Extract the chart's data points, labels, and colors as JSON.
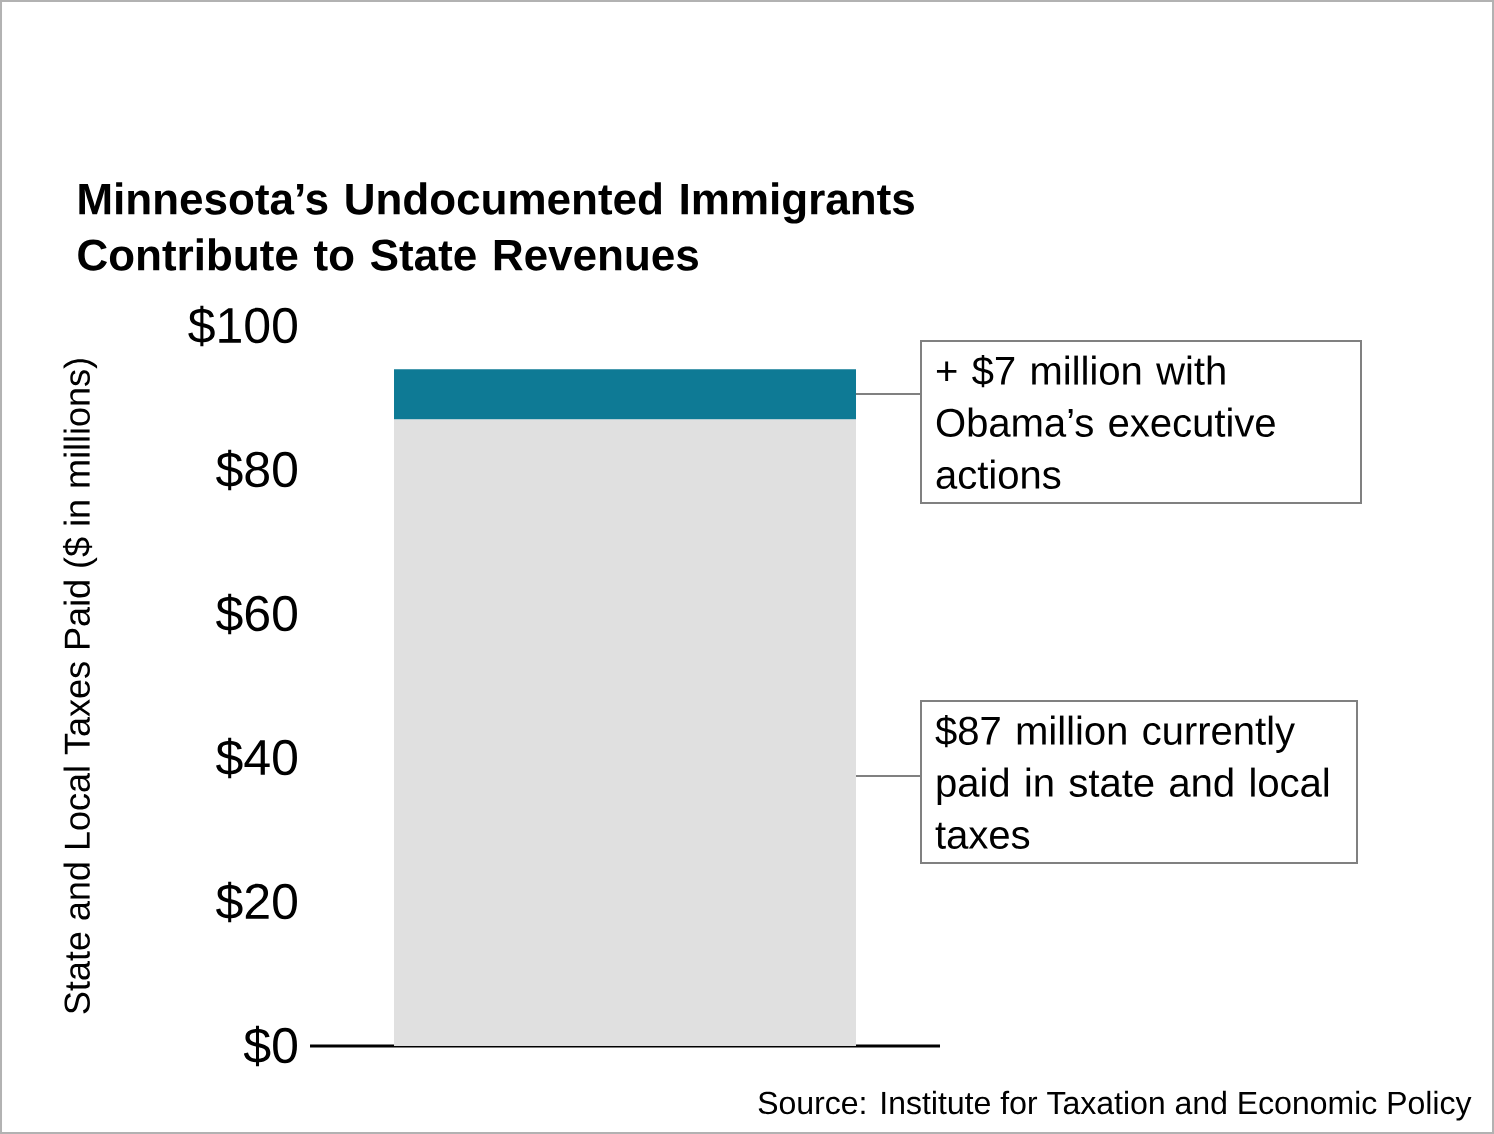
{
  "chart_data": {
    "type": "bar",
    "title": "Minnesota’s Undocumented Immigrants Contribute to State Revenues",
    "ylabel": "State and Local Taxes Paid ($ in millions)",
    "categories": [
      null
    ],
    "stacked": true,
    "series": [
      {
        "color": "#e0e0e0",
        "values": [
          87
        ]
      },
      {
        "color": "#0e7a95",
        "values": [
          7
        ]
      }
    ],
    "ylim": [
      0,
      100
    ],
    "yticks": [
      {
        "value": 0,
        "label": "$0"
      },
      {
        "value": 20,
        "label": "$20"
      },
      {
        "value": 40,
        "label": "$40"
      },
      {
        "value": 60,
        "label": "$60"
      },
      {
        "value": 80,
        "label": "$80"
      },
      {
        "value": 100,
        "label": "$100"
      }
    ],
    "annotations": [
      "+ $7 million with Obama’s executive actions",
      "$87 million currently paid in state and local taxes",
      "Source: Institute for Taxation and Economic Policy"
    ]
  }
}
